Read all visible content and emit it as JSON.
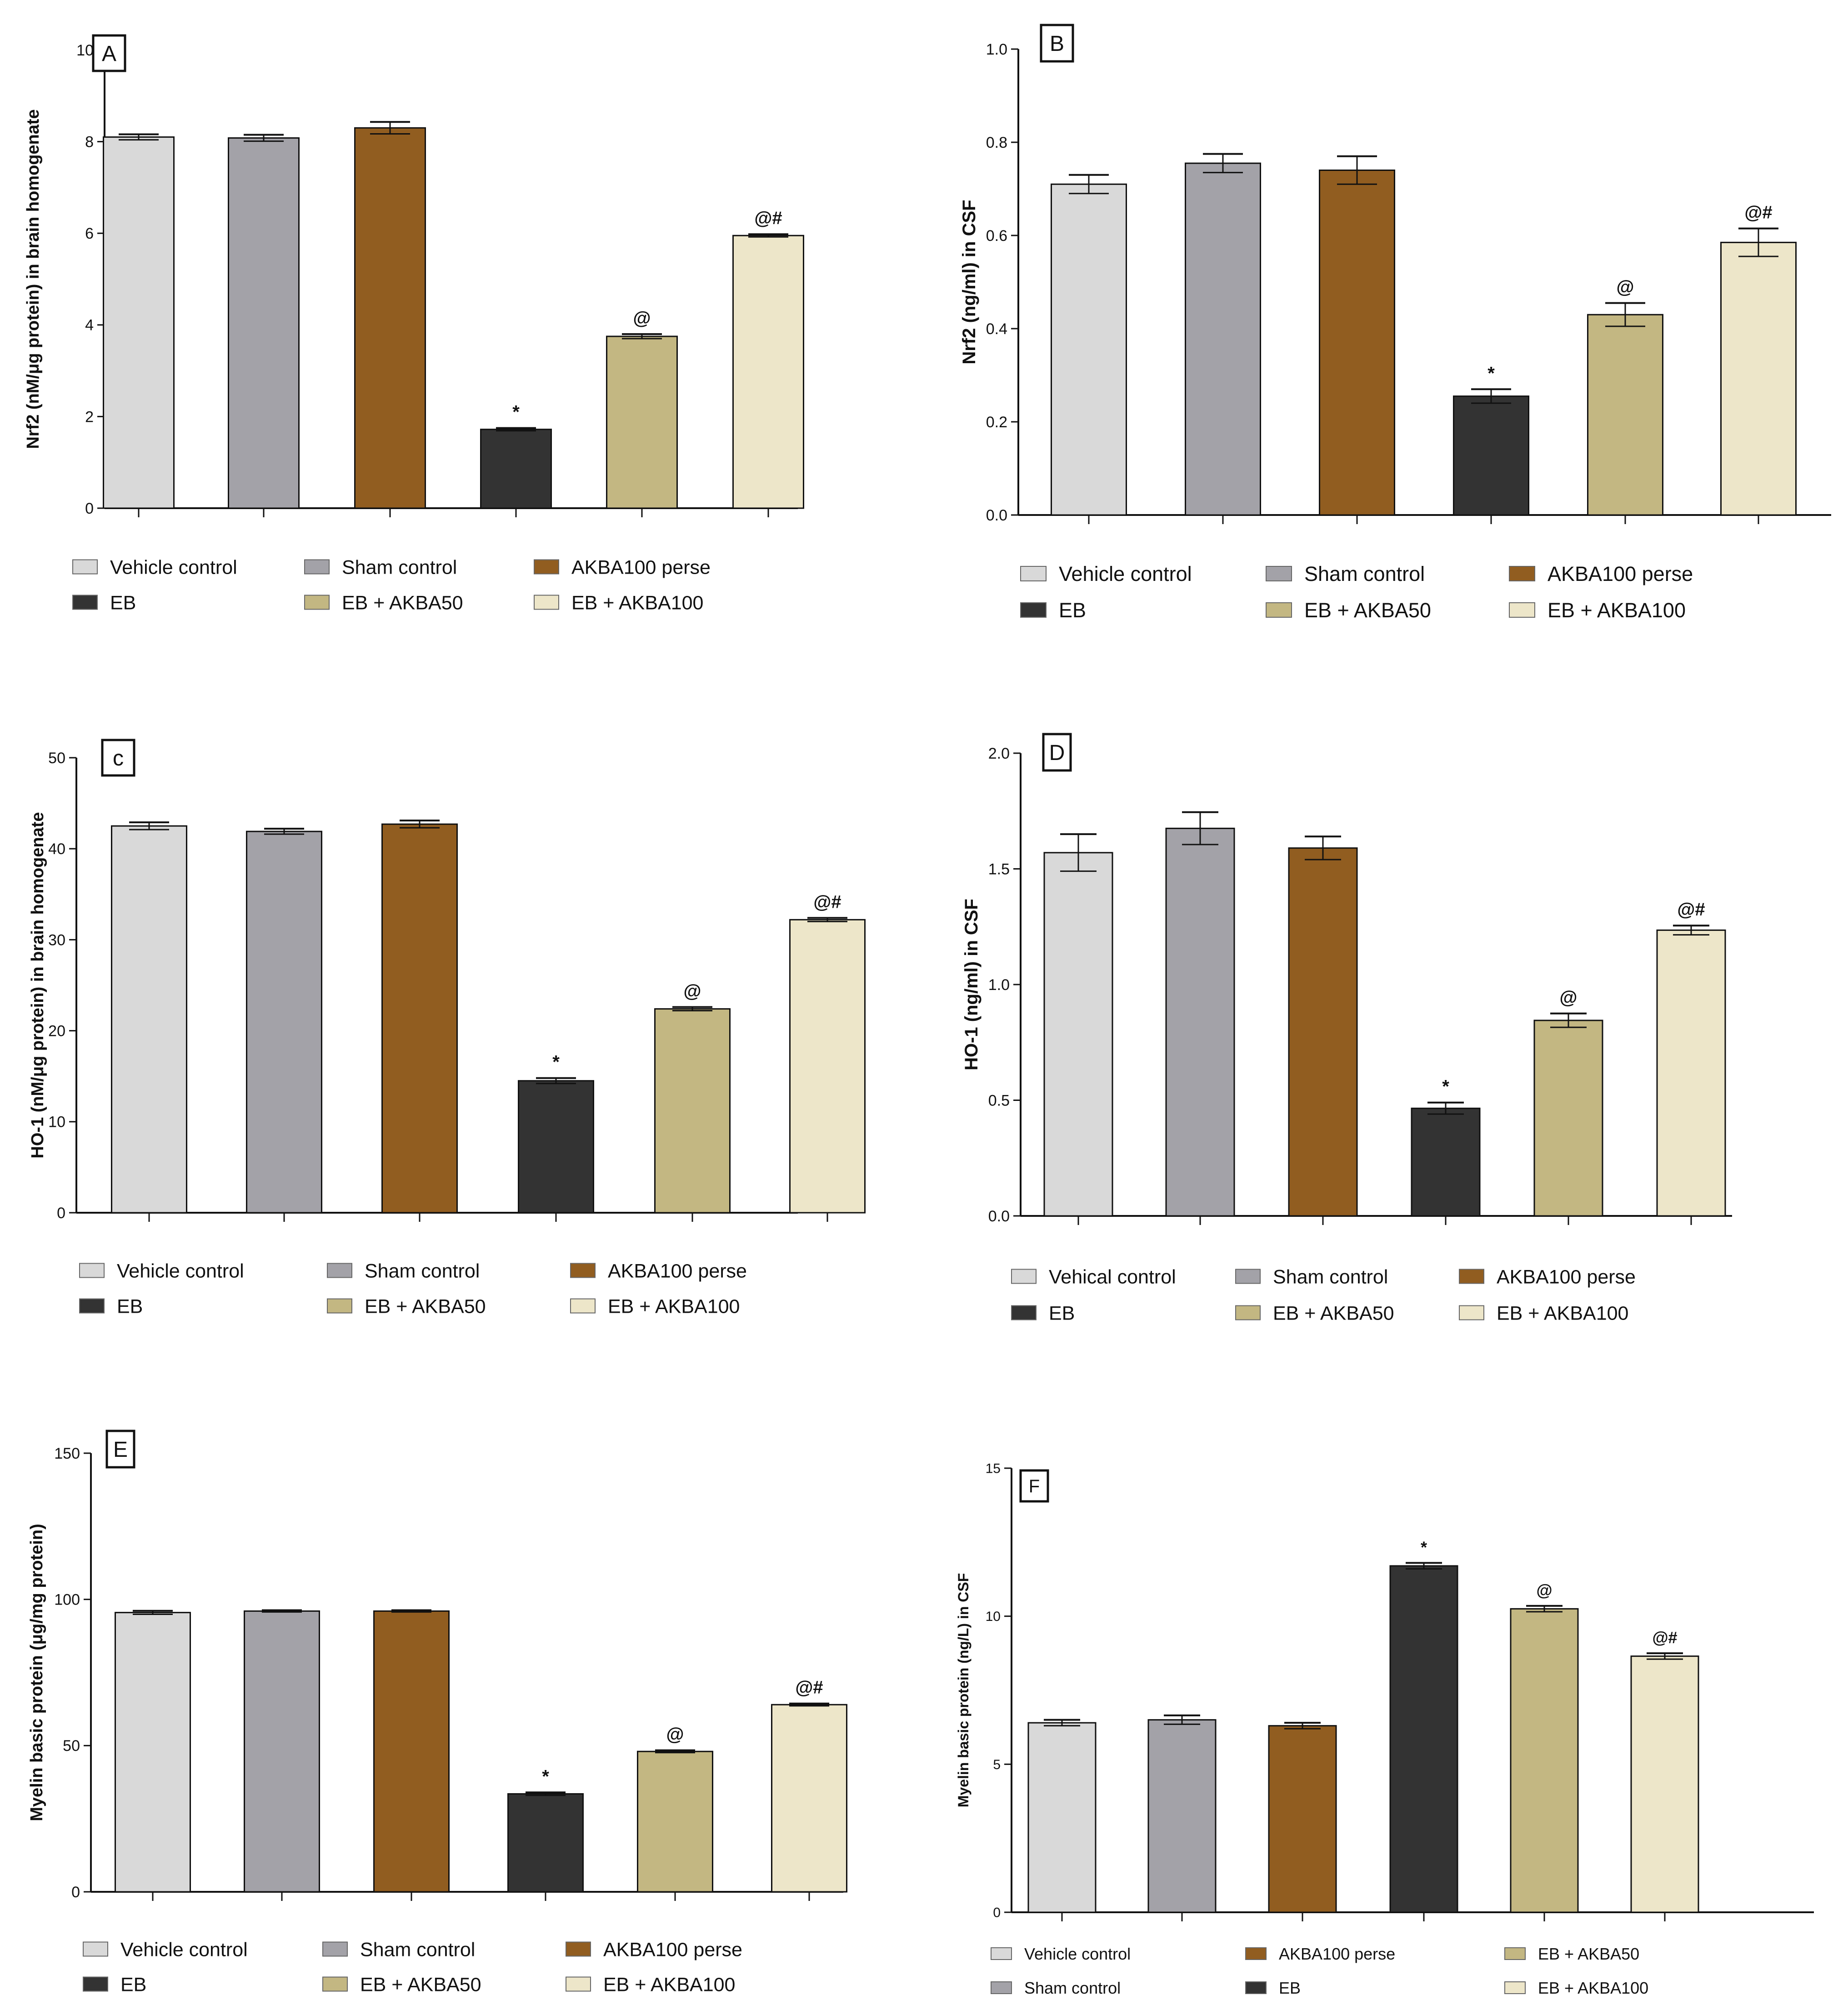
{
  "colors": {
    "vehicle_control": "#d9d9d9",
    "sham_control": "#a3a2a8",
    "akba100_perse": "#915d20",
    "eb": "#333333",
    "eb_akba50": "#c3b782",
    "eb_akba100": "#ede6c9",
    "axis": "#111111"
  },
  "chart_data": [
    {
      "type": "bar",
      "panel": "A",
      "ylabel": "Nrf2 (nM/μg protein) in brain homogenate",
      "ylim": [
        0,
        10
      ],
      "yticks": [
        "0",
        "2",
        "4",
        "6",
        "8",
        "10"
      ],
      "tick_values": [
        0,
        2,
        4,
        6,
        8,
        10
      ],
      "categories": [
        "Vehicle control",
        "Sham control",
        "AKBA100 perse",
        "EB",
        "EB + AKBA50",
        "EB + AKBA100"
      ],
      "values": [
        8.1,
        8.08,
        8.3,
        1.72,
        3.75,
        5.95
      ],
      "errors": [
        0.06,
        0.07,
        0.13,
        0.03,
        0.05,
        0.03
      ],
      "annotations": [
        "",
        "",
        "",
        "*",
        "@",
        "@#"
      ],
      "legend": [
        [
          "Vehicle control",
          "Sham control",
          "AKBA100 perse"
        ],
        [
          "EB",
          "EB + AKBA50",
          "EB + AKBA100"
        ]
      ]
    },
    {
      "type": "bar",
      "panel": "B",
      "ylabel": "Nrf2 (ng/ml) in CSF",
      "ylim": [
        0,
        1.0
      ],
      "yticks": [
        "0.0",
        "0.2",
        "0.4",
        "0.6",
        "0.8",
        "1.0"
      ],
      "tick_values": [
        0,
        0.2,
        0.4,
        0.6,
        0.8,
        1.0
      ],
      "categories": [
        "Vehicle control",
        "Sham control",
        "AKBA100 perse",
        "EB",
        "EB + AKBA50",
        "EB + AKBA100"
      ],
      "values": [
        0.71,
        0.755,
        0.74,
        0.255,
        0.43,
        0.585
      ],
      "errors": [
        0.02,
        0.02,
        0.03,
        0.015,
        0.025,
        0.03
      ],
      "annotations": [
        "",
        "",
        "",
        "*",
        "@",
        "@#"
      ],
      "legend": [
        [
          "Vehicle control",
          "Sham control",
          "AKBA100 perse"
        ],
        [
          "EB",
          "EB + AKBA50",
          "EB + AKBA100"
        ]
      ]
    },
    {
      "type": "bar",
      "panel": "c",
      "ylabel": "HO-1 (nM/μg protein) in brain homogenate",
      "ylim": [
        0,
        50
      ],
      "yticks": [
        "0",
        "10",
        "20",
        "30",
        "40",
        "50"
      ],
      "tick_values": [
        0,
        10,
        20,
        30,
        40,
        50
      ],
      "categories": [
        "Vehicle control",
        "Sham control",
        "AKBA100 perse",
        "EB",
        "EB + AKBA50",
        "EB + AKBA100"
      ],
      "values": [
        42.5,
        41.9,
        42.7,
        14.5,
        22.4,
        32.2
      ],
      "errors": [
        0.4,
        0.3,
        0.4,
        0.3,
        0.2,
        0.2
      ],
      "annotations": [
        "",
        "",
        "",
        "*",
        "@",
        "@#"
      ],
      "legend": [
        [
          "Vehicle control",
          "Sham control",
          "AKBA100 perse"
        ],
        [
          "EB",
          "EB + AKBA50",
          "EB + AKBA100"
        ]
      ]
    },
    {
      "type": "bar",
      "panel": "D",
      "ylabel": "HO-1 (ng/ml) in CSF",
      "ylim": [
        0,
        2.0
      ],
      "yticks": [
        "0.0",
        "0.5",
        "1.0",
        "1.5",
        "2.0"
      ],
      "tick_values": [
        0,
        0.5,
        1.0,
        1.5,
        2.0
      ],
      "categories": [
        "Vehical control",
        "Sham control",
        "AKBA100 perse",
        "EB",
        "EB + AKBA50",
        "EB + AKBA100"
      ],
      "values": [
        1.57,
        1.675,
        1.59,
        0.465,
        0.845,
        1.235
      ],
      "errors": [
        0.08,
        0.07,
        0.05,
        0.025,
        0.03,
        0.02
      ],
      "annotations": [
        "",
        "",
        "",
        "*",
        "@",
        "@#"
      ],
      "legend": [
        [
          "Vehical control",
          "Sham control",
          "AKBA100 perse"
        ],
        [
          "EB",
          "EB + AKBA50",
          "EB + AKBA100"
        ]
      ]
    },
    {
      "type": "bar",
      "panel": "E",
      "ylabel": "Myelin basic protein (μg/mg protein)",
      "ylim": [
        0,
        150
      ],
      "yticks": [
        "0",
        "50",
        "100",
        "150"
      ],
      "tick_values": [
        0,
        50,
        100,
        150
      ],
      "categories": [
        "Vehicle control",
        "Sham control",
        "AKBA100 perse",
        "EB",
        "EB + AKBA50",
        "EB + AKBA100"
      ],
      "values": [
        95.5,
        96.0,
        96.0,
        33.5,
        48.0,
        64.0
      ],
      "errors": [
        0.6,
        0.3,
        0.3,
        0.5,
        0.4,
        0.4
      ],
      "annotations": [
        "",
        "",
        "",
        "*",
        "@",
        "@#"
      ],
      "legend": [
        [
          "Vehicle control",
          "Sham control",
          "AKBA100 perse"
        ],
        [
          "EB",
          "EB + AKBA50",
          "EB + AKBA100"
        ]
      ]
    },
    {
      "type": "bar",
      "panel": "F",
      "ylabel": "Myelin basic protein (ng/L) in CSF",
      "ylim": [
        0,
        15
      ],
      "yticks": [
        "0",
        "5",
        "10",
        "15"
      ],
      "tick_values": [
        0,
        5,
        10,
        15
      ],
      "categories": [
        "Vehicle control",
        "Sham control",
        "AKBA100 perse",
        "EB",
        "EB + AKBA50",
        "EB + AKBA100"
      ],
      "values": [
        6.4,
        6.5,
        6.3,
        11.7,
        10.25,
        8.65
      ],
      "errors": [
        0.1,
        0.15,
        0.1,
        0.1,
        0.1,
        0.1
      ],
      "annotations": [
        "",
        "",
        "",
        "*",
        "@",
        "@#"
      ],
      "legend": [
        [
          "Vehicle control",
          "AKBA100 perse",
          "EB + AKBA50"
        ],
        [
          "Sham control",
          "EB",
          "EB + AKBA100"
        ]
      ]
    }
  ]
}
